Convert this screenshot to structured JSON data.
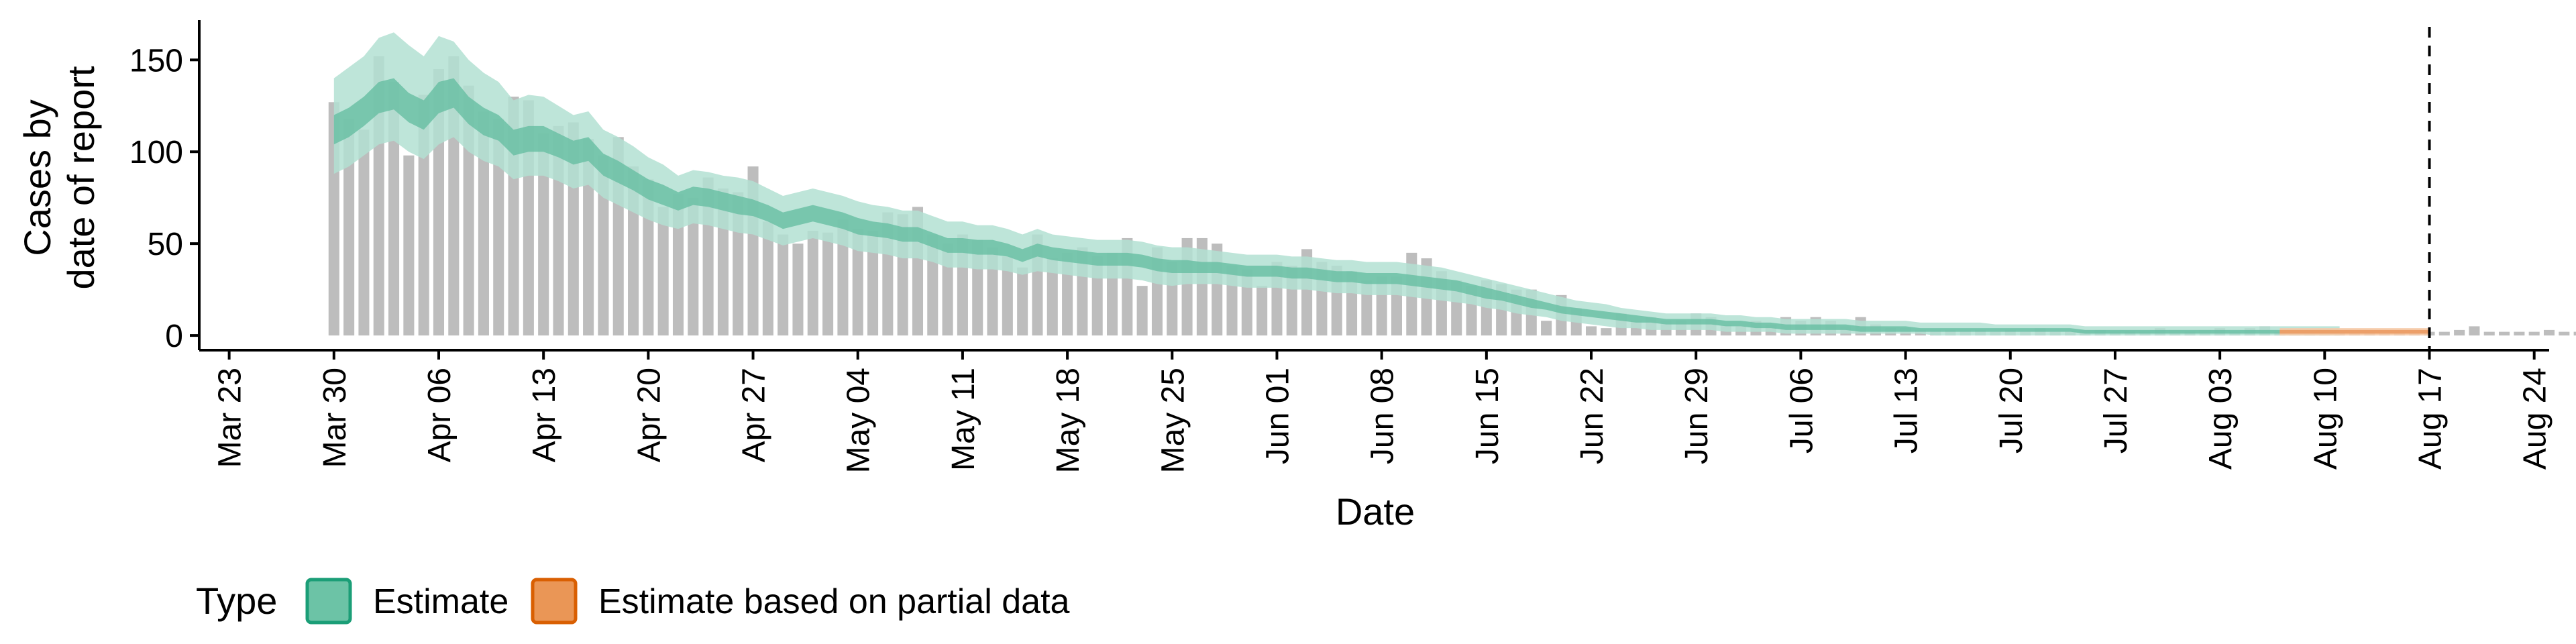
{
  "chart_data": {
    "type": "bar",
    "xlabel": "Date",
    "ylabel": [
      "Cases by",
      "date of report"
    ],
    "yticks": [
      0,
      50,
      100,
      150
    ],
    "ylim": [
      -8,
      168
    ],
    "x_start": "2020-03-21",
    "x_end": "2020-08-25",
    "xticks": [
      "Mar 23",
      "Mar 30",
      "Apr 06",
      "Apr 13",
      "Apr 20",
      "Apr 27",
      "May 04",
      "May 11",
      "May 18",
      "May 25",
      "Jun 01",
      "Jun 08",
      "Jun 15",
      "Jun 22",
      "Jun 29",
      "Jul 06",
      "Jul 13",
      "Jul 20",
      "Jul 27",
      "Aug 03",
      "Aug 10",
      "Aug 17",
      "Aug 24"
    ],
    "xtick_dates": [
      "2020-03-23",
      "2020-03-30",
      "2020-04-06",
      "2020-04-13",
      "2020-04-20",
      "2020-04-27",
      "2020-05-04",
      "2020-05-11",
      "2020-05-18",
      "2020-05-25",
      "2020-06-01",
      "2020-06-08",
      "2020-06-15",
      "2020-06-22",
      "2020-06-29",
      "2020-07-06",
      "2020-07-13",
      "2020-07-20",
      "2020-07-27",
      "2020-08-03",
      "2020-08-10",
      "2020-08-17",
      "2020-08-24"
    ],
    "vline_date": "2020-08-17",
    "bars_start_date": "2020-03-30",
    "bar_values": [
      127,
      118,
      112,
      152,
      138,
      98,
      131,
      145,
      152,
      136,
      122,
      118,
      130,
      128,
      110,
      114,
      116,
      107,
      98,
      108,
      92,
      85,
      70,
      77,
      75,
      86,
      80,
      78,
      92,
      62,
      55,
      50,
      57,
      56,
      63,
      58,
      57,
      67,
      66,
      70,
      55,
      50,
      55,
      52,
      48,
      43,
      37,
      55,
      42,
      45,
      48,
      43,
      45,
      53,
      27,
      48,
      40,
      53,
      53,
      50,
      38,
      36,
      27,
      40,
      38,
      47,
      40,
      38,
      35,
      30,
      32,
      32,
      45,
      42,
      35,
      30,
      27,
      30,
      28,
      25,
      25,
      8,
      22,
      15,
      5,
      4,
      12,
      8,
      10,
      8,
      8,
      12,
      10,
      6,
      5,
      8,
      6,
      10,
      8,
      10,
      8,
      5,
      10,
      6,
      4,
      4,
      3,
      3,
      3,
      3,
      3,
      2,
      3,
      2,
      4,
      2,
      2,
      3,
      3,
      2,
      2,
      2,
      4,
      3,
      2,
      3,
      4,
      2,
      4,
      5,
      2,
      2,
      2,
      2,
      2,
      2,
      3,
      3,
      2,
      3,
      2,
      2,
      3,
      5,
      2,
      2,
      2,
      2,
      3,
      2,
      2,
      2,
      3,
      2,
      2,
      2,
      2,
      2,
      3,
      2,
      2,
      2,
      2,
      3,
      2,
      2,
      2,
      2
    ],
    "estimate_end_date": "2020-08-06",
    "estimate_outer_upper": [
      140,
      146,
      152,
      162,
      165,
      158,
      152,
      163,
      160,
      150,
      143,
      138,
      128,
      131,
      130,
      125,
      120,
      122,
      112,
      108,
      103,
      97,
      93,
      87,
      90,
      89,
      87,
      86,
      84,
      80,
      76,
      78,
      80,
      78,
      76,
      73,
      71,
      70,
      68,
      68,
      65,
      62,
      62,
      60,
      60,
      58,
      55,
      58,
      55,
      54,
      53,
      52,
      52,
      52,
      51,
      49,
      48,
      48,
      47,
      46,
      45,
      44,
      44,
      44,
      43,
      43,
      42,
      41,
      41,
      40,
      40,
      40,
      39,
      38,
      37,
      35,
      33,
      31,
      29,
      27,
      25,
      23,
      21,
      19,
      18,
      17,
      15,
      14,
      13,
      12,
      12,
      12,
      12,
      11,
      11,
      10,
      10,
      9,
      9,
      9,
      9,
      9,
      8,
      8,
      8,
      8,
      7,
      7,
      7,
      7,
      7,
      6,
      6,
      6,
      6,
      6,
      6,
      5,
      5,
      5,
      5,
      5,
      5,
      5,
      5,
      5,
      5,
      5,
      5,
      5,
      5,
      5,
      5,
      5,
      5
    ],
    "estimate_inner_upper": [
      120,
      124,
      130,
      138,
      140,
      132,
      128,
      138,
      140,
      130,
      124,
      120,
      112,
      114,
      114,
      110,
      106,
      108,
      99,
      95,
      90,
      85,
      82,
      78,
      81,
      80,
      78,
      76,
      74,
      71,
      67,
      69,
      71,
      69,
      67,
      64,
      62,
      61,
      59,
      59,
      56,
      53,
      53,
      52,
      52,
      50,
      47,
      50,
      48,
      47,
      46,
      45,
      45,
      45,
      44,
      42,
      41,
      41,
      40,
      40,
      39,
      38,
      38,
      38,
      37,
      37,
      36,
      35,
      35,
      34,
      34,
      34,
      33,
      32,
      31,
      30,
      28,
      26,
      24,
      22,
      20,
      18,
      16,
      15,
      14,
      13,
      12,
      11,
      10,
      9,
      9,
      9,
      9,
      8,
      8,
      7,
      7,
      6,
      6,
      6,
      6,
      6,
      5,
      5,
      5,
      5,
      4,
      4,
      4,
      4,
      4,
      4,
      4,
      4,
      4,
      4,
      4,
      3,
      3,
      3,
      3,
      3,
      3,
      3,
      3,
      3,
      3,
      3,
      3,
      3,
      3,
      3,
      3,
      3,
      3
    ],
    "estimate_inner_lower": [
      104,
      108,
      114,
      121,
      123,
      116,
      112,
      121,
      124,
      115,
      109,
      106,
      98,
      100,
      100,
      97,
      93,
      95,
      87,
      83,
      79,
      74,
      71,
      68,
      71,
      70,
      68,
      66,
      65,
      62,
      58,
      60,
      62,
      60,
      58,
      55,
      54,
      53,
      51,
      51,
      48,
      45,
      45,
      44,
      44,
      43,
      40,
      43,
      41,
      40,
      39,
      38,
      38,
      38,
      37,
      35,
      34,
      34,
      34,
      34,
      33,
      32,
      32,
      32,
      31,
      31,
      30,
      29,
      29,
      28,
      28,
      28,
      27,
      26,
      25,
      24,
      22,
      20,
      19,
      17,
      15,
      14,
      12,
      11,
      10,
      9,
      8,
      7,
      7,
      6,
      6,
      6,
      6,
      5,
      5,
      4,
      4,
      3,
      3,
      3,
      3,
      3,
      2,
      2,
      2,
      2,
      2,
      2,
      2,
      2,
      2,
      2,
      2,
      2,
      2,
      2,
      2,
      1,
      1,
      1,
      1,
      1,
      1,
      1,
      1,
      1,
      1,
      1,
      1,
      1,
      1,
      1,
      1,
      1,
      1
    ],
    "estimate_outer_lower": [
      88,
      92,
      98,
      104,
      106,
      100,
      96,
      104,
      108,
      100,
      95,
      92,
      85,
      87,
      87,
      84,
      80,
      82,
      75,
      71,
      67,
      63,
      60,
      58,
      61,
      60,
      58,
      56,
      55,
      52,
      49,
      51,
      53,
      51,
      49,
      46,
      45,
      44,
      42,
      42,
      40,
      37,
      37,
      36,
      36,
      35,
      33,
      35,
      34,
      33,
      32,
      31,
      31,
      31,
      30,
      28,
      27,
      28,
      28,
      28,
      27,
      26,
      26,
      26,
      25,
      25,
      24,
      23,
      23,
      22,
      22,
      22,
      21,
      20,
      19,
      18,
      17,
      15,
      14,
      12,
      11,
      10,
      8,
      7,
      6,
      5,
      4,
      4,
      3,
      3,
      3,
      3,
      3,
      2,
      2,
      2,
      2,
      1,
      1,
      1,
      1,
      1,
      1,
      1,
      1,
      1,
      1,
      0,
      0,
      0,
      0,
      0,
      0,
      0,
      0,
      0,
      0,
      0,
      0,
      0,
      0,
      0,
      0,
      0,
      0,
      0,
      0,
      0,
      0,
      0,
      0,
      0,
      0,
      0,
      0
    ],
    "partial_start_date": "2020-08-07",
    "partial_end_date": "2020-08-17",
    "partial_outer_upper": [
      4,
      4,
      4,
      4,
      4,
      4,
      4,
      4,
      4,
      4,
      4
    ],
    "partial_inner_upper": [
      3,
      3,
      3,
      3,
      3,
      3,
      3,
      3,
      3,
      3,
      3
    ],
    "partial_inner_lower": [
      1,
      1,
      1,
      1,
      1,
      1,
      1,
      1,
      1,
      1,
      1
    ],
    "partial_outer_lower": [
      0,
      0,
      0,
      0,
      0,
      0,
      0,
      0,
      0,
      0,
      0
    ],
    "colors": {
      "bar": "#bdbdbd",
      "estimate_outer": "#b3e0d2",
      "estimate_inner": "#66bea1",
      "estimate_line": "#3aa97f",
      "partial_outer": "#f5c9a6",
      "partial_inner": "#eb9a62",
      "legend_estimate_fill": "#6cc3a6",
      "legend_estimate_border": "#1b9e77",
      "legend_partial_fill": "#ea9656",
      "legend_partial_border": "#d95f02"
    },
    "legend": {
      "title": "Type",
      "position": "bottom-left",
      "items": [
        {
          "label": "Estimate",
          "key": "estimate"
        },
        {
          "label": "Estimate based on partial data",
          "key": "partial"
        }
      ]
    },
    "grid": false
  }
}
